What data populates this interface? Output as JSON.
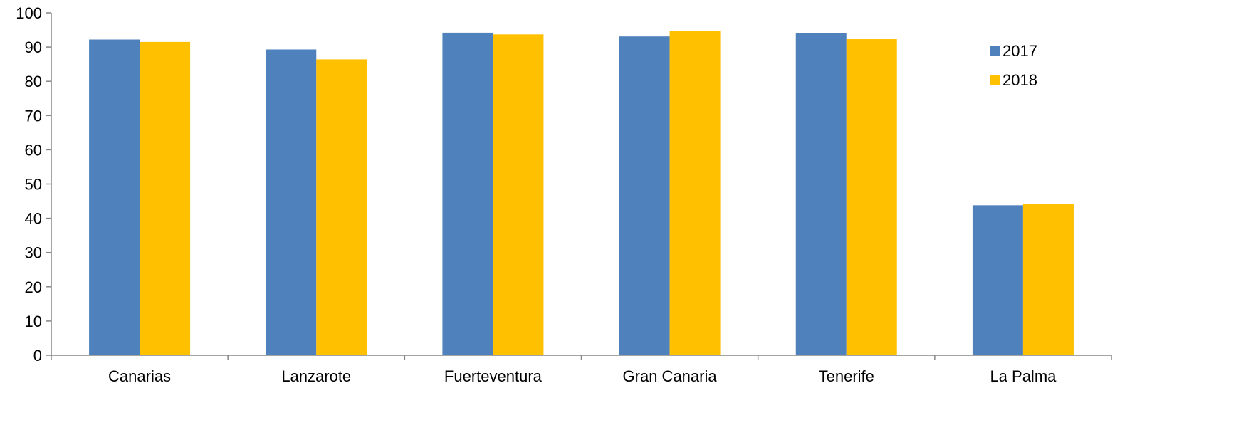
{
  "chart_data": {
    "type": "bar",
    "title": "",
    "xlabel": "",
    "ylabel": "",
    "ylim": [
      0,
      100
    ],
    "yticks": [
      0,
      10,
      20,
      30,
      40,
      50,
      60,
      70,
      80,
      90,
      100
    ],
    "grid": false,
    "legend_position": "right",
    "categories": [
      "Canarias",
      "Lanzarote",
      "Fuerteventura",
      "Gran Canaria",
      "Tenerife",
      "La Palma"
    ],
    "series": [
      {
        "name": "2017",
        "color": "#4F81BD",
        "values": [
          92.2,
          89.3,
          94.2,
          93.1,
          94.0,
          43.8
        ]
      },
      {
        "name": "2018",
        "color": "#FFC000",
        "values": [
          91.5,
          86.4,
          93.7,
          94.6,
          92.3,
          44.1
        ]
      }
    ]
  }
}
